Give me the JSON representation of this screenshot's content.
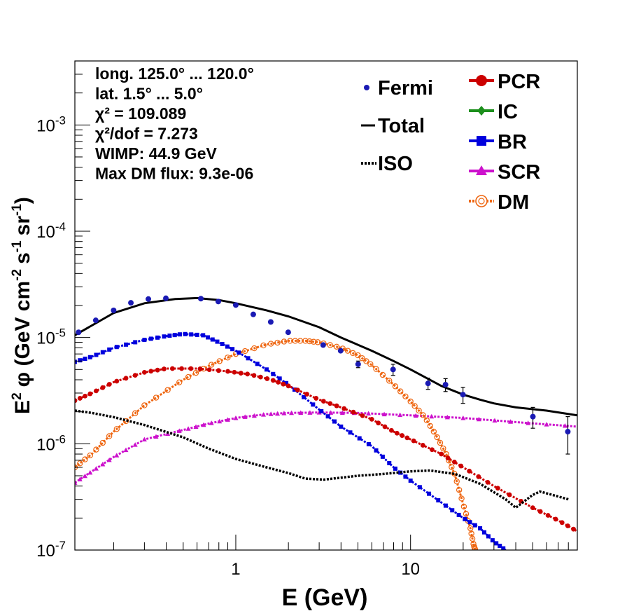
{
  "chart_data": {
    "type": "line",
    "xlabel": "E (GeV)",
    "ylabel_parts": {
      "e": "E",
      "e_sup": "2",
      "phi": "φ (GeV cm",
      "cm_sup": "-2",
      "s": "s",
      "s_sup": "-1",
      "sr": "sr",
      "sr_sup": "-1",
      "close": ")"
    },
    "x_log": true,
    "y_log": true,
    "xlim": [
      0.12,
      90
    ],
    "ylim": [
      1e-07,
      0.004
    ],
    "x_tick_labels": [
      {
        "value": 1,
        "text": "1"
      },
      {
        "value": 10,
        "text": "10"
      }
    ],
    "y_tick_labels": [
      {
        "value": 1e-07,
        "base": "10",
        "exp": "-7"
      },
      {
        "value": 1e-06,
        "base": "10",
        "exp": "-6"
      },
      {
        "value": 1e-05,
        "base": "10",
        "exp": "-5"
      },
      {
        "value": 0.0001,
        "base": "10",
        "exp": "-4"
      },
      {
        "value": 0.001,
        "base": "10",
        "exp": "-3"
      }
    ],
    "info_lines": [
      "long. 125.0° ... 120.0°",
      "lat. 1.5° ... 5.0°",
      "χ² = 109.089",
      "χ²/dof = 7.273",
      "WIMP: 44.9 GeV",
      "Max DM flux: 9.3e-06"
    ],
    "legend": [
      {
        "label": "Fermi",
        "color": "#1a1ab4",
        "style": "points"
      },
      {
        "label": "Total",
        "color": "#000000",
        "style": "solid"
      },
      {
        "label": "ISO",
        "color": "#000000",
        "style": "dotted"
      },
      {
        "label": "PCR",
        "color": "#cc0000",
        "style": "circle"
      },
      {
        "label": "IC",
        "color": "#1c8f1c",
        "style": "diamond"
      },
      {
        "label": "BR",
        "color": "#0000dd",
        "style": "square"
      },
      {
        "label": "SCR",
        "color": "#cc11cc",
        "style": "triangle"
      },
      {
        "label": "DM",
        "color": "#ee6611",
        "style": "open-circle"
      }
    ],
    "series": [
      {
        "name": "Fermi",
        "color": "#1a1ab4",
        "points": [
          {
            "x": 0.126,
            "y": 1.12e-05,
            "err": 0
          },
          {
            "x": 0.158,
            "y": 1.45e-05,
            "err": 0
          },
          {
            "x": 0.2,
            "y": 1.8e-05,
            "err": 0
          },
          {
            "x": 0.251,
            "y": 2.12e-05,
            "err": 0
          },
          {
            "x": 0.316,
            "y": 2.3e-05,
            "err": 0
          },
          {
            "x": 0.398,
            "y": 2.34e-05,
            "err": 0
          },
          {
            "x": 0.631,
            "y": 2.32e-05,
            "err": 0
          },
          {
            "x": 0.794,
            "y": 2.18e-05,
            "err": 0
          },
          {
            "x": 1.0,
            "y": 2.02e-05,
            "err": 0
          },
          {
            "x": 1.259,
            "y": 1.65e-05,
            "err": 0
          },
          {
            "x": 1.585,
            "y": 1.4e-05,
            "err": 0
          },
          {
            "x": 1.995,
            "y": 1.12e-05,
            "err": 0
          },
          {
            "x": 3.162,
            "y": 8.5e-06,
            "err": 0
          },
          {
            "x": 3.981,
            "y": 7.5e-06,
            "err": 0
          },
          {
            "x": 5.012,
            "y": 5.6e-06,
            "err": 4e-07
          },
          {
            "x": 7.943,
            "y": 5e-06,
            "err": 6e-07
          },
          {
            "x": 12.59,
            "y": 3.7e-06,
            "err": 4.5e-07
          },
          {
            "x": 15.85,
            "y": 3.6e-06,
            "err": 5e-07
          },
          {
            "x": 19.95,
            "y": 2.9e-06,
            "err": 5e-07
          },
          {
            "x": 50.12,
            "y": 1.8e-06,
            "err": 4e-07
          },
          {
            "x": 79.43,
            "y": 1.3e-06,
            "err": 5e-07
          }
        ]
      },
      {
        "name": "Total",
        "color": "#000000",
        "points": [
          [
            0.12,
            1.05e-05
          ],
          [
            0.2,
            1.7e-05
          ],
          [
            0.3,
            2.1e-05
          ],
          [
            0.45,
            2.3e-05
          ],
          [
            0.6,
            2.35e-05
          ],
          [
            0.8,
            2.25e-05
          ],
          [
            1.0,
            2.1e-05
          ],
          [
            1.5,
            1.8e-05
          ],
          [
            2.0,
            1.58e-05
          ],
          [
            3.0,
            1.25e-05
          ],
          [
            4.0,
            1e-05
          ],
          [
            6.0,
            7.5e-06
          ],
          [
            8.0,
            6e-06
          ],
          [
            10.0,
            5e-06
          ],
          [
            15.0,
            3.5e-06
          ],
          [
            20.0,
            2.9e-06
          ],
          [
            25.0,
            2.6e-06
          ],
          [
            30.0,
            2.4e-06
          ],
          [
            40.0,
            2.2e-06
          ],
          [
            60.0,
            2.05e-06
          ],
          [
            90.0,
            1.85e-06
          ]
        ]
      },
      {
        "name": "ISO",
        "color": "#000000",
        "points": [
          [
            0.12,
            2.05e-06
          ],
          [
            0.15,
            1.95e-06
          ],
          [
            0.2,
            1.78e-06
          ],
          [
            0.3,
            1.5e-06
          ],
          [
            0.5,
            1.15e-06
          ],
          [
            0.7,
            9e-07
          ],
          [
            1.0,
            7.2e-07
          ],
          [
            1.5,
            6e-07
          ],
          [
            2.0,
            5.3e-07
          ],
          [
            2.5,
            4.7e-07
          ],
          [
            3.2,
            4.6e-07
          ],
          [
            4.0,
            4.8e-07
          ],
          [
            5.0,
            5e-07
          ],
          [
            7.0,
            5.2e-07
          ],
          [
            10.0,
            5.5e-07
          ],
          [
            13.0,
            5.6e-07
          ],
          [
            18.0,
            5.2e-07
          ],
          [
            25.0,
            4.2e-07
          ],
          [
            35.0,
            3e-07
          ],
          [
            40.0,
            2.5e-07
          ],
          [
            50.0,
            3.3e-07
          ],
          [
            55.0,
            3.55e-07
          ],
          [
            65.0,
            3.3e-07
          ],
          [
            80.0,
            3e-07
          ]
        ]
      },
      {
        "name": "PCR",
        "color": "#cc0000",
        "points": [
          [
            0.12,
            2.55e-06
          ],
          [
            0.15,
            3e-06
          ],
          [
            0.2,
            3.8e-06
          ],
          [
            0.3,
            4.7e-06
          ],
          [
            0.4,
            5.1e-06
          ],
          [
            0.6,
            5.1e-06
          ],
          [
            0.9,
            4.8e-06
          ],
          [
            1.2,
            4.5e-06
          ],
          [
            1.6,
            4e-06
          ],
          [
            2.0,
            3.5e-06
          ],
          [
            3.0,
            2.6e-06
          ],
          [
            4.0,
            2.2e-06
          ],
          [
            6.0,
            1.7e-06
          ],
          [
            8.0,
            1.3e-06
          ],
          [
            10.0,
            1.1e-06
          ],
          [
            15.0,
            8e-07
          ],
          [
            20.0,
            6e-07
          ],
          [
            30.0,
            4e-07
          ],
          [
            50.0,
            2.5e-07
          ],
          [
            70.0,
            1.9e-07
          ],
          [
            90.0,
            1.5e-07
          ]
        ]
      },
      {
        "name": "BR",
        "color": "#0000dd",
        "points": [
          [
            0.12,
            5.9e-06
          ],
          [
            0.15,
            6.6e-06
          ],
          [
            0.2,
            8e-06
          ],
          [
            0.3,
            9.5e-06
          ],
          [
            0.4,
            1.03e-05
          ],
          [
            0.5,
            1.08e-05
          ],
          [
            0.65,
            1.05e-05
          ],
          [
            0.8,
            9e-06
          ],
          [
            1.0,
            7.5e-06
          ],
          [
            1.5,
            5e-06
          ],
          [
            2.0,
            3.6e-06
          ],
          [
            3.0,
            2.1e-06
          ],
          [
            4.0,
            1.45e-06
          ],
          [
            6.0,
            9.5e-07
          ],
          [
            8.0,
            6e-07
          ],
          [
            10.0,
            4.5e-07
          ],
          [
            15.0,
            2.8e-07
          ],
          [
            20.0,
            2e-07
          ],
          [
            25.0,
            1.6e-07
          ],
          [
            30.0,
            1.2e-07
          ],
          [
            35.0,
            1e-07
          ]
        ]
      },
      {
        "name": "SCR",
        "color": "#cc11cc",
        "points": [
          [
            0.12,
            4.3e-07
          ],
          [
            0.15,
            5.5e-07
          ],
          [
            0.2,
            7.5e-07
          ],
          [
            0.3,
            1.1e-06
          ],
          [
            0.5,
            1.35e-06
          ],
          [
            0.7,
            1.55e-06
          ],
          [
            1.0,
            1.75e-06
          ],
          [
            1.5,
            1.9e-06
          ],
          [
            2.0,
            1.95e-06
          ],
          [
            3.0,
            1.97e-06
          ],
          [
            5.0,
            1.95e-06
          ],
          [
            10.0,
            1.85e-06
          ],
          [
            20.0,
            1.75e-06
          ],
          [
            40.0,
            1.6e-06
          ],
          [
            90.0,
            1.45e-06
          ]
        ]
      },
      {
        "name": "DM",
        "color": "#ee6611",
        "points": [
          [
            0.12,
            6e-07
          ],
          [
            0.15,
            8e-07
          ],
          [
            0.2,
            1.3e-06
          ],
          [
            0.3,
            2.3e-06
          ],
          [
            0.5,
            4e-06
          ],
          [
            0.7,
            5.4e-06
          ],
          [
            1.0,
            7e-06
          ],
          [
            1.5,
            8.6e-06
          ],
          [
            2.0,
            9.3e-06
          ],
          [
            2.5,
            9.3e-06
          ],
          [
            3.0,
            9e-06
          ],
          [
            4.0,
            8e-06
          ],
          [
            5.0,
            6.8e-06
          ],
          [
            6.0,
            5.5e-06
          ],
          [
            8.0,
            3.6e-06
          ],
          [
            10.0,
            2.5e-06
          ],
          [
            12.0,
            1.8e-06
          ],
          [
            14.0,
            1.2e-06
          ],
          [
            16.0,
            8e-07
          ],
          [
            18.0,
            5e-07
          ],
          [
            20.0,
            2.7e-07
          ],
          [
            22.0,
            1.6e-07
          ],
          [
            23.0,
            1.1e-07
          ],
          [
            23.5,
            1e-07
          ]
        ]
      }
    ]
  }
}
